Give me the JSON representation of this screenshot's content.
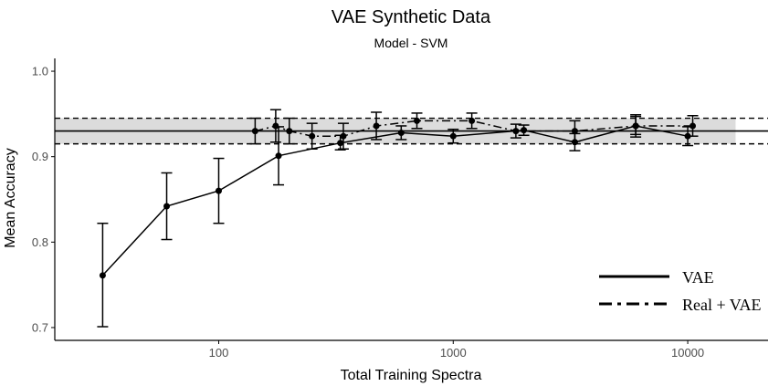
{
  "chart_data": {
    "type": "line",
    "title": "VAE Synthetic Data",
    "subtitle": "Model - SVM",
    "xlabel": "Total Training Spectra",
    "ylabel": "Mean Accuracy",
    "x_scale": "log10",
    "xlim": [
      20,
      22000
    ],
    "ylim": [
      0.685,
      1.015
    ],
    "x_ticks": [
      {
        "value": 100,
        "label": "100"
      },
      {
        "value": 1000,
        "label": "1000"
      },
      {
        "value": 10000,
        "label": "10000"
      }
    ],
    "y_ticks": [
      {
        "value": 0.7,
        "label": "0.7"
      },
      {
        "value": 0.8,
        "label": "0.8"
      },
      {
        "value": 0.9,
        "label": "0.9"
      },
      {
        "value": 1.0,
        "label": "1.0"
      }
    ],
    "grid": false,
    "baseline": {
      "mean": 0.93,
      "band_low": 0.915,
      "band_high": 0.945,
      "x_from": 20,
      "x_to": 16000
    },
    "series": [
      {
        "name": "VAE",
        "line_style": "solid",
        "points": [
          {
            "x": 32,
            "y": 0.761,
            "lo": 0.701,
            "hi": 0.822
          },
          {
            "x": 60,
            "y": 0.842,
            "lo": 0.803,
            "hi": 0.881
          },
          {
            "x": 100,
            "y": 0.86,
            "lo": 0.822,
            "hi": 0.898
          },
          {
            "x": 180,
            "y": 0.901,
            "lo": 0.867,
            "hi": 0.935
          },
          {
            "x": 330,
            "y": 0.916,
            "lo": 0.908,
            "hi": 0.925
          },
          {
            "x": 600,
            "y": 0.928,
            "lo": 0.92,
            "hi": 0.936
          },
          {
            "x": 1000,
            "y": 0.924,
            "lo": 0.916,
            "hi": 0.932
          },
          {
            "x": 2000,
            "y": 0.931,
            "lo": 0.925,
            "hi": 0.937
          },
          {
            "x": 3300,
            "y": 0.917,
            "lo": 0.907,
            "hi": 0.927
          },
          {
            "x": 6000,
            "y": 0.936,
            "lo": 0.926,
            "hi": 0.947
          },
          {
            "x": 10000,
            "y": 0.924,
            "lo": 0.913,
            "hi": 0.935
          }
        ]
      },
      {
        "name": "Real + VAE",
        "line_style": "dashdot",
        "points": [
          {
            "x": 143,
            "y": 0.93,
            "lo": 0.915,
            "hi": 0.945
          },
          {
            "x": 175,
            "y": 0.936,
            "lo": 0.917,
            "hi": 0.955
          },
          {
            "x": 200,
            "y": 0.93,
            "lo": 0.915,
            "hi": 0.945
          },
          {
            "x": 250,
            "y": 0.924,
            "lo": 0.909,
            "hi": 0.939
          },
          {
            "x": 340,
            "y": 0.924,
            "lo": 0.909,
            "hi": 0.939
          },
          {
            "x": 470,
            "y": 0.936,
            "lo": 0.92,
            "hi": 0.952
          },
          {
            "x": 700,
            "y": 0.942,
            "lo": 0.933,
            "hi": 0.951
          },
          {
            "x": 1200,
            "y": 0.942,
            "lo": 0.933,
            "hi": 0.951
          },
          {
            "x": 1850,
            "y": 0.93,
            "lo": 0.922,
            "hi": 0.938
          },
          {
            "x": 3300,
            "y": 0.93,
            "lo": 0.918,
            "hi": 0.942
          },
          {
            "x": 6000,
            "y": 0.936,
            "lo": 0.923,
            "hi": 0.949
          },
          {
            "x": 10500,
            "y": 0.936,
            "lo": 0.924,
            "hi": 0.948
          }
        ]
      }
    ],
    "legend": {
      "position": "bottom-right",
      "entries": [
        {
          "label": "VAE",
          "line_style": "solid"
        },
        {
          "label": "Real + VAE",
          "line_style": "dashdot"
        }
      ]
    },
    "colors": {
      "line": "#000000",
      "band": "#dcdcdc",
      "axis": "#000000",
      "tick_text": "#4d4d4d"
    }
  }
}
